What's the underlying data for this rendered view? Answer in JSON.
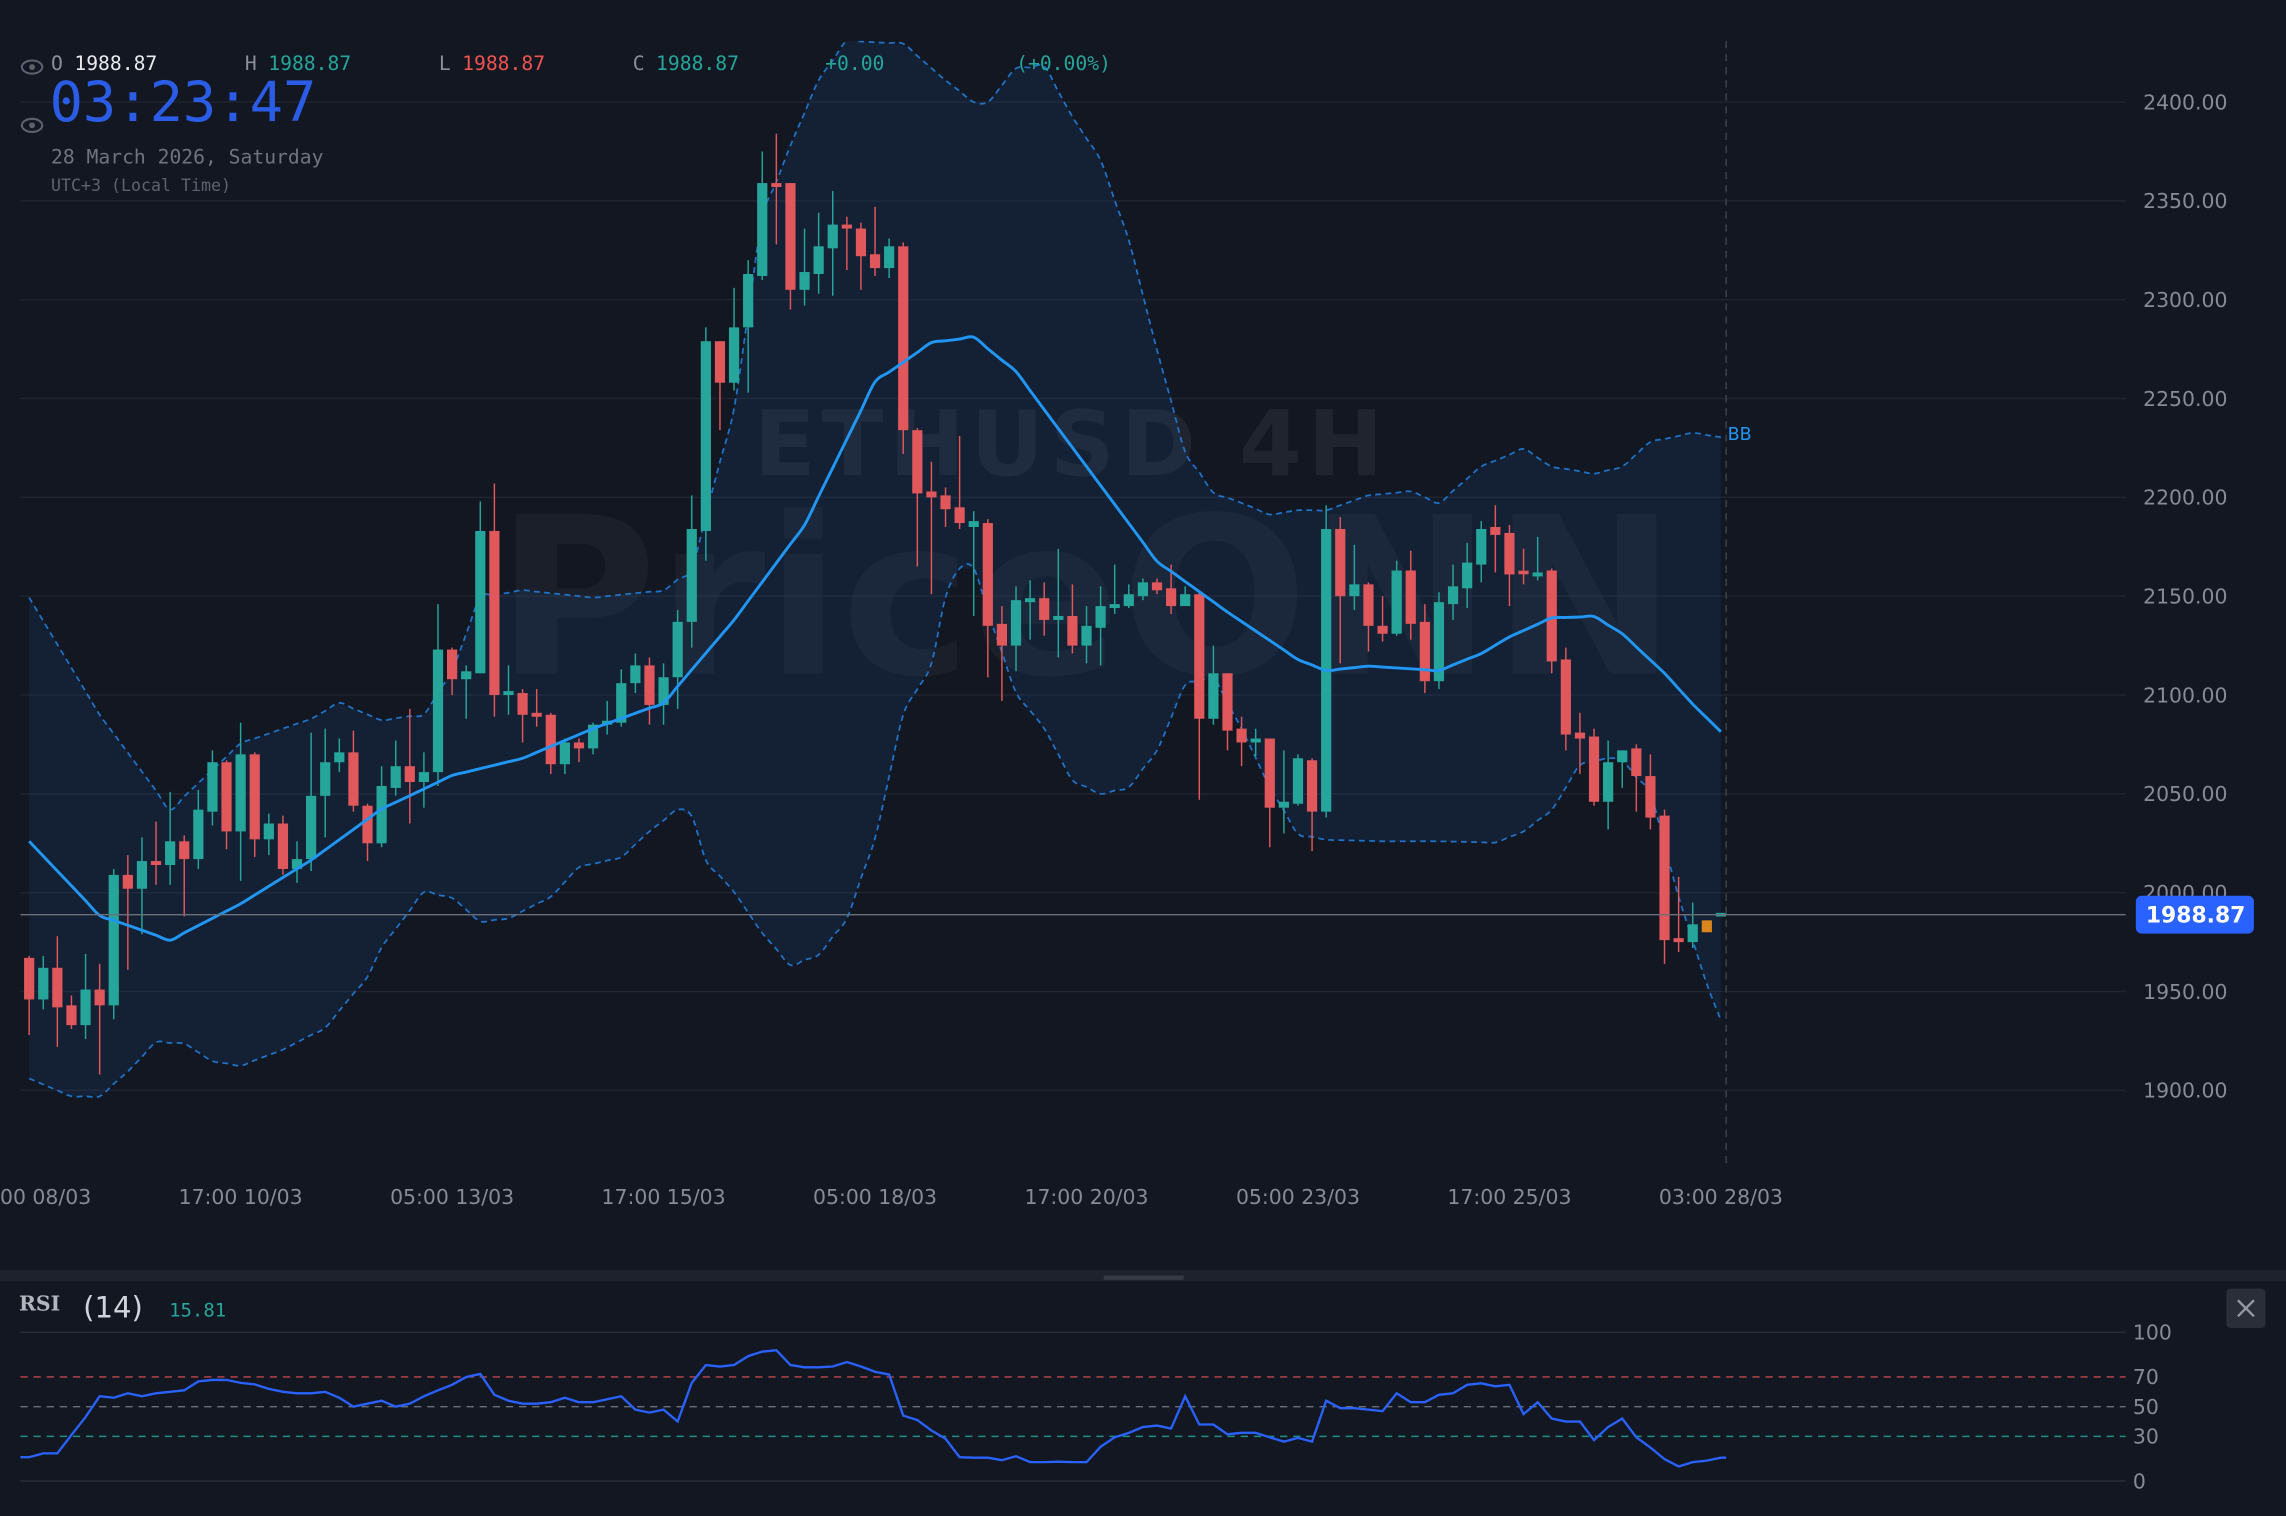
{
  "header": {
    "ohlc": {
      "o_label": "O",
      "o": "1988.87",
      "h_label": "H",
      "h": "1988.87",
      "l_label": "L",
      "l": "1988.87",
      "c_label": "C",
      "c": "1988.87",
      "change": "+0.00",
      "change_pct": "(+0.00%)"
    },
    "clock": "03:23:47",
    "date": "28 March 2026, Saturday",
    "timezone": "UTC+3 (Local Time)",
    "icons": [
      "eye-icon",
      "eye-icon"
    ]
  },
  "watermark": {
    "symbol": "ETHUSD 4H",
    "brand": "PriceONN"
  },
  "indicator_label": "BB",
  "colors": {
    "background": "#131722",
    "up": "#26a69a",
    "down": "#e0575c",
    "highlight_candle": "#d9861c",
    "bb_middle": "#2196f3",
    "bb_band": "#1f73c8",
    "current_price_badge": "#2962ff",
    "clock": "#2b5ce6",
    "rsi_line": "#2962ff",
    "rsi_overbought": "#c0474c",
    "rsi_mid": "#6b6f7a",
    "rsi_oversold": "#1f8f86"
  },
  "price_axis": {
    "ticks": [
      "2400.00",
      "2350.00",
      "2300.00",
      "2250.00",
      "2200.00",
      "2150.00",
      "2100.00",
      "2050.00",
      "2000.00",
      "1950.00",
      "1900.00"
    ],
    "current_price": "1988.87"
  },
  "time_axis": {
    "labels": [
      "00 08/03",
      "17:00 10/03",
      "05:00 13/03",
      "17:00 15/03",
      "05:00 18/03",
      "17:00 20/03",
      "05:00 23/03",
      "17:00 25/03",
      "03:00 28/03"
    ]
  },
  "rsi": {
    "name": "RSI",
    "period": "(14)",
    "value": "15.81",
    "ticks": [
      "100",
      "70",
      "50",
      "30",
      "0"
    ],
    "levels": [
      70,
      50,
      30
    ],
    "ylim": [
      0,
      100
    ],
    "close_icon": "close-icon",
    "values": [
      16,
      18.6,
      18.6,
      31,
      43,
      57,
      56,
      59,
      57,
      59,
      60,
      61,
      67,
      68,
      68,
      66,
      65,
      62,
      60,
      59,
      59,
      60,
      56,
      50,
      52,
      54,
      50,
      52,
      57,
      61,
      64.7,
      70,
      72,
      58,
      54,
      52,
      52,
      53,
      56,
      53,
      53,
      55,
      57,
      48,
      46,
      48,
      40,
      66,
      78,
      77,
      78,
      84,
      87,
      88,
      78,
      76.5,
      76.5,
      77,
      80,
      77,
      73.5,
      71.6,
      44,
      41,
      34,
      28.4,
      16,
      15.7,
      15.7,
      14,
      16.7,
      12.7,
      12.7,
      13,
      12.7,
      12.7,
      23,
      29.4,
      32.4,
      36.3,
      37.3,
      35.3,
      57,
      38,
      38,
      31.4,
      32.4,
      32.4,
      29.4,
      26.5,
      29,
      26.5,
      54,
      49,
      49,
      48,
      47,
      59,
      53,
      53,
      58,
      59,
      64.7,
      65.7,
      63.7,
      64.7,
      45,
      53,
      42,
      40,
      40,
      27.5,
      36.3,
      42,
      29.4,
      22.5,
      14.7,
      9.8,
      12.7,
      13.7,
      15.7
    ]
  },
  "chart_data": {
    "type": "candlestick",
    "title": "",
    "ylim": [
      1900,
      2400
    ],
    "grid": true,
    "highlight_index": 119,
    "candles_ohlc": [
      [
        1967,
        1968,
        1928,
        1946
      ],
      [
        1946,
        1968,
        1941,
        1962
      ],
      [
        1962,
        1978,
        1922,
        1942
      ],
      [
        1943,
        1948,
        1931,
        1933
      ],
      [
        1933,
        1969,
        1926,
        1951
      ],
      [
        1951,
        1964,
        1908,
        1943
      ],
      [
        1943,
        2012,
        1936,
        2009
      ],
      [
        2009,
        2019,
        1961,
        2002
      ],
      [
        2002,
        2028,
        1979,
        2016
      ],
      [
        2016,
        2036,
        2004,
        2014
      ],
      [
        2014,
        2051,
        2004,
        2026
      ],
      [
        2026,
        2029,
        1988,
        2017
      ],
      [
        2017,
        2052,
        2012,
        2042
      ],
      [
        2041,
        2072,
        2034,
        2066
      ],
      [
        2066,
        2067,
        2022,
        2031
      ],
      [
        2031,
        2086,
        2006,
        2070
      ],
      [
        2070,
        2071,
        2018,
        2027
      ],
      [
        2027,
        2040,
        2019,
        2035
      ],
      [
        2035,
        2039,
        2009,
        2012
      ],
      [
        2012,
        2026,
        2005,
        2017
      ],
      [
        2017,
        2081,
        2011,
        2049
      ],
      [
        2049,
        2083,
        2028,
        2066
      ],
      [
        2066,
        2078,
        2061,
        2071
      ],
      [
        2071,
        2082,
        2041,
        2044
      ],
      [
        2044,
        2045,
        2016,
        2025
      ],
      [
        2025,
        2064,
        2023,
        2054
      ],
      [
        2053,
        2077,
        2049,
        2064
      ],
      [
        2064,
        2093,
        2035,
        2056
      ],
      [
        2056,
        2071,
        2043,
        2061
      ],
      [
        2061,
        2146,
        2054,
        2123
      ],
      [
        2123,
        2124,
        2100,
        2108
      ],
      [
        2108,
        2115,
        2088,
        2112
      ],
      [
        2111,
        2198,
        2111,
        2183
      ],
      [
        2183,
        2207,
        2089,
        2100
      ],
      [
        2100,
        2115,
        2090,
        2102
      ],
      [
        2101,
        2103,
        2076,
        2090
      ],
      [
        2091,
        2103,
        2084,
        2089
      ],
      [
        2090,
        2091,
        2060,
        2065
      ],
      [
        2065,
        2078,
        2060,
        2076
      ],
      [
        2076,
        2078,
        2066,
        2073
      ],
      [
        2073,
        2086,
        2070,
        2085
      ],
      [
        2085,
        2097,
        2080,
        2087
      ],
      [
        2086,
        2113,
        2084,
        2106
      ],
      [
        2106,
        2121,
        2101,
        2115
      ],
      [
        2115,
        2119,
        2085,
        2095
      ],
      [
        2095,
        2116,
        2085,
        2109
      ],
      [
        2109,
        2143,
        2093,
        2137
      ],
      [
        2137,
        2201,
        2124,
        2184
      ],
      [
        2183,
        2286,
        2168,
        2279
      ],
      [
        2279,
        2279,
        2234,
        2258
      ],
      [
        2258,
        2306,
        2254,
        2286
      ],
      [
        2286,
        2320,
        2253,
        2313
      ],
      [
        2312,
        2375,
        2310,
        2359
      ],
      [
        2359,
        2384,
        2328,
        2357
      ],
      [
        2359,
        2359,
        2295,
        2305
      ],
      [
        2305,
        2336,
        2297,
        2314
      ],
      [
        2313,
        2344,
        2303,
        2327
      ],
      [
        2326,
        2355,
        2302,
        2338
      ],
      [
        2338,
        2342,
        2315,
        2336
      ],
      [
        2336,
        2339,
        2305,
        2322
      ],
      [
        2323,
        2347,
        2312,
        2316
      ],
      [
        2316,
        2331,
        2311,
        2327
      ],
      [
        2327,
        2329,
        2222,
        2234
      ],
      [
        2234,
        2235,
        2165,
        2202
      ],
      [
        2203,
        2218,
        2151,
        2200
      ],
      [
        2201,
        2205,
        2185,
        2194
      ],
      [
        2195,
        2231,
        2184,
        2187
      ],
      [
        2185,
        2193,
        2140,
        2188
      ],
      [
        2187,
        2189,
        2109,
        2135
      ],
      [
        2136,
        2145,
        2097,
        2125
      ],
      [
        2125,
        2155,
        2112,
        2148
      ],
      [
        2147,
        2158,
        2128,
        2149
      ],
      [
        2149,
        2157,
        2130,
        2138
      ],
      [
        2138,
        2174,
        2119,
        2140
      ],
      [
        2140,
        2156,
        2121,
        2125
      ],
      [
        2125,
        2145,
        2116,
        2135
      ],
      [
        2134,
        2155,
        2115,
        2145
      ],
      [
        2144,
        2166,
        2141,
        2146
      ],
      [
        2145,
        2156,
        2144,
        2151
      ],
      [
        2150,
        2159,
        2148,
        2157
      ],
      [
        2157,
        2159,
        2151,
        2153
      ],
      [
        2154,
        2166,
        2141,
        2145
      ],
      [
        2145,
        2155,
        2145,
        2151
      ],
      [
        2151,
        2152,
        2047,
        2088
      ],
      [
        2088,
        2125,
        2085,
        2111
      ],
      [
        2111,
        2111,
        2072,
        2082
      ],
      [
        2083,
        2089,
        2064,
        2076
      ],
      [
        2076,
        2083,
        2069,
        2078
      ],
      [
        2078,
        2078,
        2023,
        2043
      ],
      [
        2043,
        2072,
        2030,
        2046
      ],
      [
        2045,
        2070,
        2044,
        2068
      ],
      [
        2067,
        2068,
        2021,
        2041
      ],
      [
        2041,
        2196,
        2038,
        2184
      ],
      [
        2184,
        2190,
        2116,
        2150
      ],
      [
        2150,
        2176,
        2143,
        2156
      ],
      [
        2156,
        2157,
        2122,
        2135
      ],
      [
        2135,
        2150,
        2127,
        2131
      ],
      [
        2131,
        2168,
        2130,
        2163
      ],
      [
        2163,
        2173,
        2128,
        2136
      ],
      [
        2137,
        2146,
        2101,
        2107
      ],
      [
        2107,
        2152,
        2103,
        2147
      ],
      [
        2146,
        2166,
        2138,
        2155
      ],
      [
        2154,
        2177,
        2144,
        2167
      ],
      [
        2166,
        2188,
        2157,
        2184
      ],
      [
        2185,
        2196,
        2162,
        2181
      ],
      [
        2182,
        2186,
        2145,
        2161
      ],
      [
        2162,
        2174,
        2156,
        2161
      ],
      [
        2160,
        2180,
        2158,
        2162
      ],
      [
        2163,
        2164,
        2111,
        2117
      ],
      [
        2118,
        2124,
        2072,
        2080
      ],
      [
        2081,
        2091,
        2060,
        2078
      ],
      [
        2079,
        2083,
        2044,
        2046
      ],
      [
        2046,
        2077,
        2032,
        2066
      ],
      [
        2066,
        2072,
        2053,
        2072
      ],
      [
        2073,
        2075,
        2041,
        2059
      ],
      [
        2059,
        2070,
        2032,
        2038
      ],
      [
        2039,
        2042,
        1964,
        1976
      ],
      [
        1977,
        2008,
        1970,
        1975
      ],
      [
        1975,
        1995,
        1972,
        1984
      ],
      [
        1986,
        1986,
        1980,
        1980
      ],
      [
        1988.87,
        1988.87,
        1988.87,
        1988.87
      ]
    ],
    "bollinger": {
      "middle": [
        [
          0,
          2026
        ],
        [
          5,
          1988.5
        ],
        [
          10,
          1976
        ],
        [
          15,
          1994.4
        ],
        [
          20,
          2016.5
        ],
        [
          25,
          2042.3
        ],
        [
          30,
          2059.3
        ],
        [
          35,
          2068
        ],
        [
          40,
          2083
        ],
        [
          45,
          2096
        ],
        [
          50,
          2138
        ],
        [
          55,
          2186
        ],
        [
          60,
          2258.4
        ],
        [
          64,
          2278.3
        ],
        [
          67,
          2281
        ],
        [
          70,
          2263.6
        ],
        [
          75,
          2215.6
        ],
        [
          80,
          2167.7
        ],
        [
          85,
          2142
        ],
        [
          90,
          2118
        ],
        [
          92,
          2112.4
        ],
        [
          95,
          2114.6
        ],
        [
          100,
          2112.4
        ],
        [
          103,
          2121
        ],
        [
          105,
          2129.4
        ],
        [
          108,
          2139
        ],
        [
          111,
          2139.7
        ],
        [
          113,
          2131
        ],
        [
          116,
          2111
        ],
        [
          118,
          2095.4
        ],
        [
          120,
          2081.4
        ]
      ],
      "upper": [
        [
          0,
          2149.3
        ],
        [
          5,
          2090
        ],
        [
          10,
          2042
        ],
        [
          15,
          2075.5
        ],
        [
          20,
          2088
        ],
        [
          22,
          2096
        ],
        [
          25,
          2087.3
        ],
        [
          28,
          2090.3
        ],
        [
          30,
          2112.4
        ],
        [
          32,
          2149.3
        ],
        [
          35,
          2153
        ],
        [
          40,
          2149.3
        ],
        [
          45,
          2153
        ],
        [
          47,
          2164
        ],
        [
          50,
          2245
        ],
        [
          52,
          2341
        ],
        [
          54,
          2378
        ],
        [
          56,
          2411
        ],
        [
          58,
          2431
        ],
        [
          62,
          2429.5
        ],
        [
          65,
          2411
        ],
        [
          67,
          2400
        ],
        [
          68,
          2400
        ],
        [
          70,
          2417
        ],
        [
          72,
          2418
        ],
        [
          74,
          2392.6
        ],
        [
          76,
          2370.5
        ],
        [
          78,
          2330
        ],
        [
          80,
          2274.6
        ],
        [
          82,
          2223
        ],
        [
          84,
          2202.4
        ],
        [
          86,
          2197.2
        ],
        [
          88,
          2191.3
        ],
        [
          90,
          2193.5
        ],
        [
          92,
          2193.5
        ],
        [
          95,
          2201
        ],
        [
          98,
          2203
        ],
        [
          100,
          2197.2
        ],
        [
          103,
          2215.6
        ],
        [
          106,
          2224.5
        ],
        [
          108,
          2215.6
        ],
        [
          111,
          2212
        ],
        [
          113,
          2215.6
        ],
        [
          115,
          2228
        ],
        [
          118,
          2232.6
        ],
        [
          120,
          2230.4
        ]
      ],
      "lower": [
        [
          0,
          1906
        ],
        [
          3,
          1897
        ],
        [
          5,
          1897
        ],
        [
          7,
          1909.6
        ],
        [
          9,
          1924.3
        ],
        [
          11,
          1923.6
        ],
        [
          13,
          1914.8
        ],
        [
          15,
          1912.5
        ],
        [
          18,
          1920.6
        ],
        [
          21,
          1931.7
        ],
        [
          24,
          1957.5
        ],
        [
          25,
          1972.3
        ],
        [
          28,
          2000.3
        ],
        [
          30,
          1997.3
        ],
        [
          32,
          1985.5
        ],
        [
          34,
          1987
        ],
        [
          37,
          1998
        ],
        [
          39,
          2012.8
        ],
        [
          42,
          2018
        ],
        [
          44,
          2031
        ],
        [
          46,
          2042
        ],
        [
          47,
          2038.6
        ],
        [
          48,
          2016.5
        ],
        [
          50,
          2000.3
        ],
        [
          52,
          1979.6
        ],
        [
          54,
          1963.4
        ],
        [
          56,
          1968.6
        ],
        [
          58,
          1987
        ],
        [
          60,
          2027.6
        ],
        [
          62,
          2090
        ],
        [
          64,
          2116
        ],
        [
          65,
          2149.3
        ],
        [
          66,
          2164
        ],
        [
          67,
          2164
        ],
        [
          68,
          2142
        ],
        [
          70,
          2101.3
        ],
        [
          72,
          2083
        ],
        [
          74,
          2057
        ],
        [
          76,
          2050
        ],
        [
          78,
          2053.4
        ],
        [
          80,
          2072
        ],
        [
          82,
          2105
        ],
        [
          84,
          2108.7
        ],
        [
          86,
          2083
        ],
        [
          88,
          2053.4
        ],
        [
          90,
          2029.8
        ],
        [
          92,
          2026.8
        ],
        [
          96,
          2026
        ],
        [
          100,
          2026
        ],
        [
          104,
          2025.4
        ],
        [
          106,
          2031
        ],
        [
          108,
          2042
        ],
        [
          110,
          2064.5
        ],
        [
          112,
          2068
        ],
        [
          113,
          2066.7
        ],
        [
          115,
          2050
        ],
        [
          117,
          1998
        ],
        [
          119,
          1953.8
        ],
        [
          120,
          1935.4
        ]
      ]
    }
  }
}
